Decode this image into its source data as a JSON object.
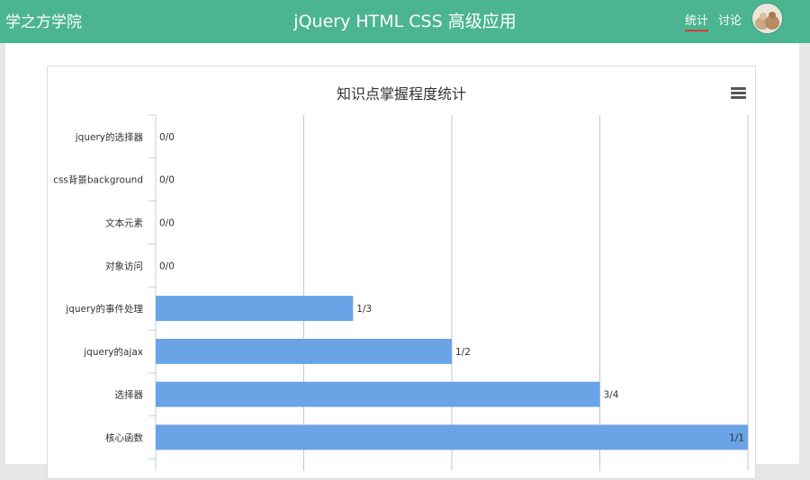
{
  "header": {
    "brand": "学之方学院",
    "course_title": "jQuery HTML CSS 高级应用",
    "nav": [
      {
        "label": "统计",
        "active": true
      },
      {
        "label": "讨论",
        "active": false
      }
    ],
    "accent_color": "#4bb592",
    "active_underline_color": "#d9393b"
  },
  "chart_data": {
    "type": "bar",
    "orientation": "horizontal",
    "title": "知识点掌握程度统计",
    "categories": [
      "jquery的选择器",
      "css背景background",
      "文本元素",
      "对象访问",
      "jquery的事件处理",
      "jquery的ajax",
      "选择器",
      "核心函数"
    ],
    "values": [
      0,
      0,
      0,
      0,
      0.3333,
      0.5,
      0.75,
      1
    ],
    "data_labels": [
      "0/0",
      "0/0",
      "0/0",
      "0/0",
      "1/3",
      "1/2",
      "3/4",
      "1/1"
    ],
    "xlim": [
      0,
      1
    ],
    "grid": true,
    "bar_color": "#6aa3e6"
  }
}
